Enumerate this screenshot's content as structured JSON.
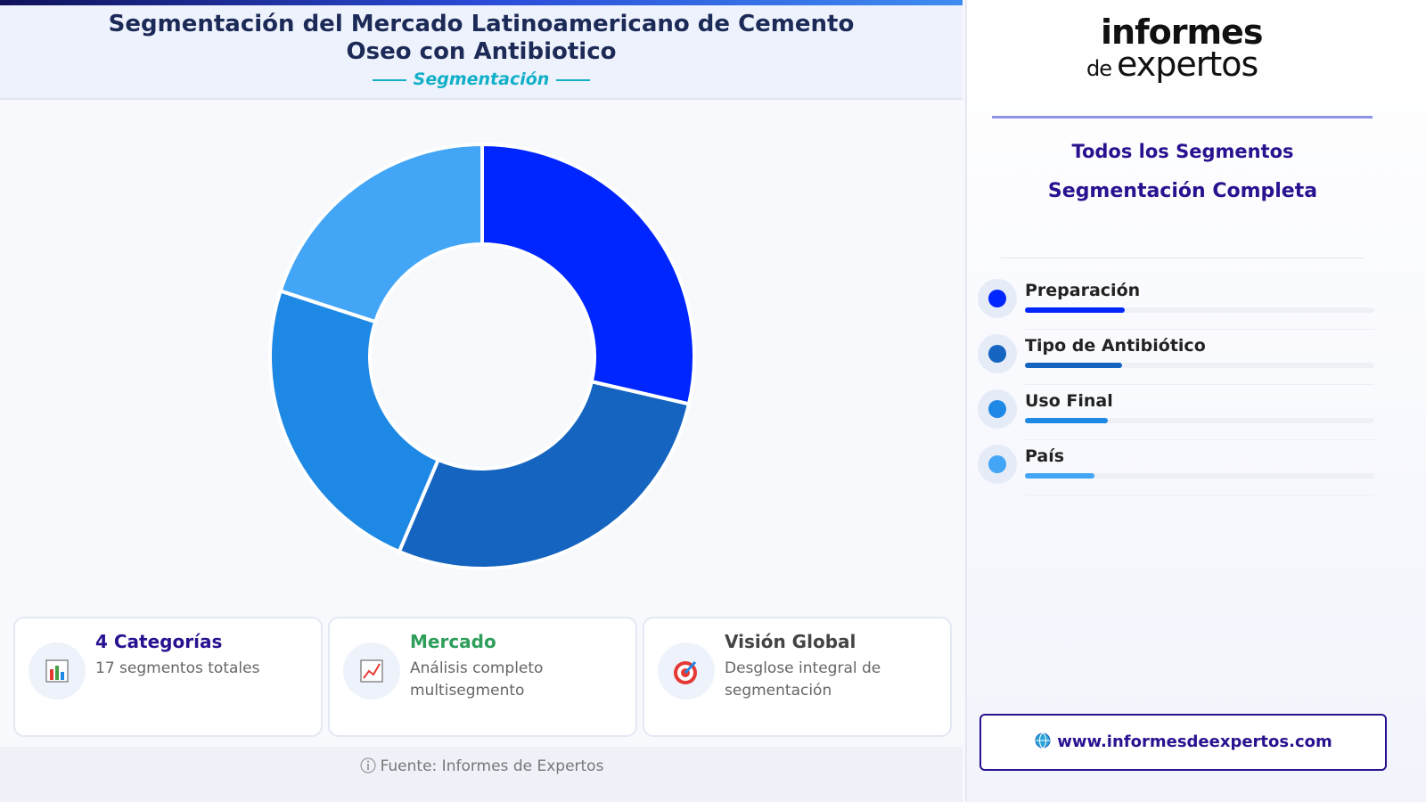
{
  "header": {
    "title": "Segmentación del Mercado Latinoamericano de Cemento Oseo con Antibiotico",
    "subtitle": "Segmentación"
  },
  "chart_data": {
    "type": "donut",
    "categories": [
      "Preparación",
      "Tipo de Antibiótico",
      "Uso Final",
      "País"
    ],
    "values": [
      28.6,
      27.8,
      23.6,
      20.0
    ],
    "colors": [
      "#0026ff",
      "#1565c0",
      "#1e88e5",
      "#42a5f5"
    ]
  },
  "cards": [
    {
      "title": "4 Categorías",
      "text": "17 segmentos totales"
    },
    {
      "title": "Mercado",
      "text": "Análisis completo multisegmento"
    },
    {
      "title": "Visión Global",
      "text": "Desglose integral de segmentación"
    }
  ],
  "footer": {
    "source": "Fuente: Informes de Expertos"
  },
  "sidebar": {
    "logo_line1": "informes",
    "logo_de": "de",
    "logo_line2": "expertos",
    "heading": "Todos los Segmentos",
    "subheading": "Segmentación Completa",
    "website": "www.informesdeexpertos.com"
  }
}
